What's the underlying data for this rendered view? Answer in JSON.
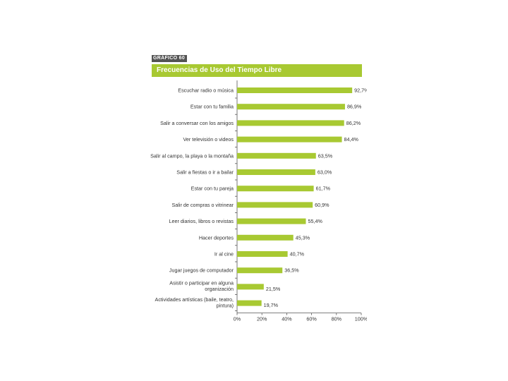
{
  "chart_data": {
    "type": "bar",
    "orientation": "horizontal",
    "label": "GRÁFICO 60",
    "title": "Frecuencias de Uso del Tiempo Libre",
    "categories": [
      [
        "Escuchar radio o música"
      ],
      [
        "Estar con tu familia"
      ],
      [
        "Salir a conversar con los amigos"
      ],
      [
        "Ver televisión o videos"
      ],
      [
        "Salir al campo, la playa o la montaña"
      ],
      [
        "Salir a fiestas o ir a bailar"
      ],
      [
        "Estar con tu pareja"
      ],
      [
        "Salir de compras o vitrinear"
      ],
      [
        "Leer diarios, libros o revistas"
      ],
      [
        "Hacer deportes"
      ],
      [
        "Ir al cine"
      ],
      [
        "Jugar juegos de computador"
      ],
      [
        "Asistir o participar en alguna",
        "organización"
      ],
      [
        "Actividades artísticas (baile, teatro,",
        "pintura)"
      ]
    ],
    "values": [
      92.7,
      86.9,
      86.2,
      84.4,
      63.5,
      63.0,
      61.7,
      60.9,
      55.4,
      45.3,
      40.7,
      36.5,
      21.5,
      19.7
    ],
    "value_labels": [
      "92,7%",
      "86,9%",
      "86,2%",
      "84,4%",
      "63,5%",
      "63,0%",
      "61,7%",
      "60,9%",
      "55,4%",
      "45,3%",
      "40,7%",
      "36,5%",
      "21,5%",
      "19,7%"
    ],
    "xlim": [
      0,
      100
    ],
    "xticks": [
      "0%",
      "20%",
      "40%",
      "60%",
      "80%",
      "100%"
    ],
    "color": "#a8c932",
    "grid": false
  }
}
